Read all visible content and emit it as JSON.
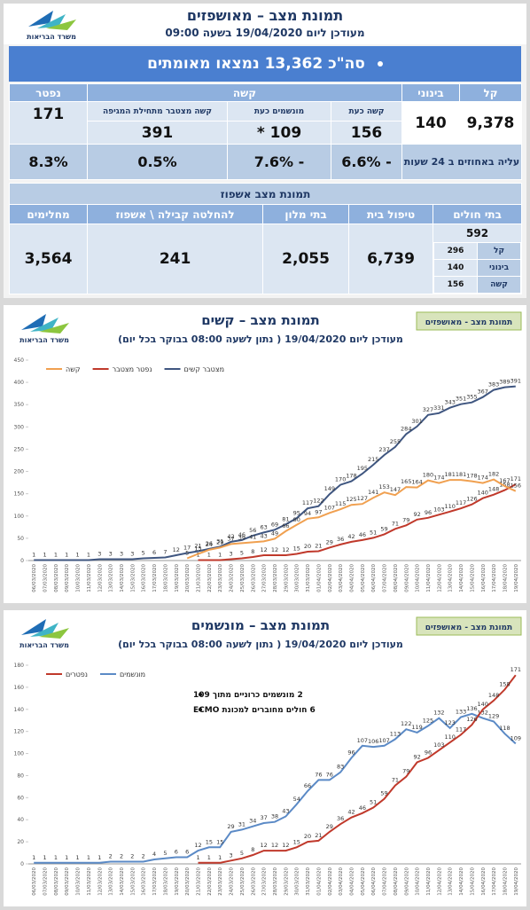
{
  "logo": "משרד הבריאות",
  "header": {
    "title": "תמונת מצב – מאושפזים",
    "subtitle": "מעודכן ליום 19/04/2020 בשעה 09:00"
  },
  "banner": "סה\"כ 13,362 נמצאו מאומתים",
  "status_table": {
    "headers": {
      "mild": "קל",
      "moderate": "בינוני",
      "severe": "קשה",
      "dead": "נפטר"
    },
    "severe_subheaders": [
      "קשה כעת",
      "מונשמים כעת",
      "קשה מצטבר מתחילת המגיפה"
    ],
    "values": {
      "mild": "9,378",
      "moderate": "140",
      "severe": [
        "156",
        "109 *",
        "391"
      ],
      "dead": "171"
    },
    "change_label": "עליה באחוזים ב 24 שעות",
    "changes": [
      "- 6.6%",
      "- 7.6%",
      "0.5%",
      "8.3%"
    ]
  },
  "hospitalization": {
    "title": "תמונת מצב אשפוז",
    "headers": [
      "בתי חולים",
      "טיפול בית",
      "בתי מלון",
      "להחלטה קבילה \\ אשפוז",
      "מחלימים"
    ],
    "values": [
      "592",
      "6,739",
      "2,055",
      "241",
      "3,564"
    ],
    "hospital_breakdown": [
      [
        "קל",
        "296"
      ],
      [
        "בינוני",
        "140"
      ],
      [
        "קשה",
        "156"
      ]
    ]
  },
  "chart_data": [
    {
      "type": "line",
      "tag": "תמונת מצב - מאושפזים",
      "title": "תמונת מצב – קשים",
      "subtitle": "מעודכן ליום 19/04/2020 ( נתון לשעה 08:00 בבוקר בכל יום)",
      "categories": [
        "06/03/2020",
        "07/03/2020",
        "08/03/2020",
        "09/03/2020",
        "10/03/2020",
        "11/03/2020",
        "12/03/2020",
        "13/03/2020",
        "14/03/2020",
        "15/03/2020",
        "16/03/2020",
        "17/03/2020",
        "18/03/2020",
        "19/03/2020",
        "20/03/2020",
        "21/03/2020",
        "22/03/2020",
        "23/03/2020",
        "24/03/2020",
        "25/03/2020",
        "26/03/2020",
        "27/03/2020",
        "28/03/2020",
        "29/03/2020",
        "30/03/2020",
        "31/03/2020",
        "01/04/2020",
        "02/04/2020",
        "03/04/2020",
        "04/04/2020",
        "05/04/2020",
        "06/04/2020",
        "07/04/2020",
        "08/04/2020",
        "09/04/2020",
        "10/04/2020",
        "11/04/2020",
        "12/04/2020",
        "13/04/2020",
        "14/04/2020",
        "15/04/2020",
        "16/04/2020",
        "17/04/2020",
        "18/04/2020",
        "19/04/2020"
      ],
      "series": [
        {
          "name": "מצטבר קשים",
          "color": "#3f5680",
          "values": [
            1,
            1,
            1,
            1,
            1,
            1,
            3,
            3,
            3,
            3,
            5,
            6,
            7,
            12,
            17,
            21,
            26,
            31,
            42,
            46,
            56,
            63,
            69,
            81,
            95,
            117,
            122,
            149,
            170,
            178,
            195,
            215,
            237,
            255,
            284,
            301,
            327,
            331,
            343,
            351,
            355,
            367,
            383,
            389,
            391
          ]
        },
        {
          "name": "נפטר מצטבר",
          "color": "#c0392b",
          "values": [
            null,
            null,
            null,
            null,
            null,
            null,
            null,
            null,
            null,
            null,
            null,
            null,
            null,
            null,
            null,
            1,
            1,
            1,
            3,
            5,
            8,
            12,
            12,
            12,
            15,
            20,
            21,
            29,
            36,
            42,
            46,
            51,
            59,
            71,
            79,
            92,
            96,
            103,
            110,
            117,
            126,
            140,
            148,
            158,
            171
          ]
        },
        {
          "name": "קשה",
          "color": "#f0a050",
          "values": [
            null,
            null,
            null,
            null,
            null,
            null,
            null,
            null,
            null,
            null,
            null,
            null,
            null,
            null,
            5,
            15,
            24,
            29,
            37,
            39,
            41,
            43,
            49,
            66,
            80,
            94,
            97,
            107,
            115,
            125,
            127,
            141,
            153,
            147,
            165,
            164,
            180,
            174,
            181,
            181,
            178,
            174,
            182,
            167,
            156
          ]
        }
      ],
      "ylim": [
        0,
        450
      ],
      "yticks": [
        0,
        50,
        100,
        150,
        200,
        250,
        300,
        350,
        400,
        450
      ],
      "grid": false,
      "legend": "top-left"
    },
    {
      "type": "line",
      "tag": "תמונת מצב - מאושפזים",
      "title": "תמונת מצב – מונשמים",
      "subtitle": "מעודכן ליום 19/04/2020 ( נתון לשעה 08:00 בבוקר בכל יום)",
      "categories": [
        "06/03/2020",
        "07/03/2020",
        "08/03/2020",
        "09/03/2020",
        "10/03/2020",
        "11/03/2020",
        "12/03/2020",
        "13/03/2020",
        "14/03/2020",
        "15/03/2020",
        "16/03/2020",
        "17/03/2020",
        "18/03/2020",
        "19/03/2020",
        "20/03/2020",
        "21/03/2020",
        "22/03/2020",
        "23/03/2020",
        "24/03/2020",
        "25/03/2020",
        "26/03/2020",
        "27/03/2020",
        "28/03/2020",
        "29/03/2020",
        "30/03/2020",
        "31/03/2020",
        "01/04/2020",
        "02/04/2020",
        "03/04/2020",
        "04/04/2020",
        "05/04/2020",
        "06/04/2020",
        "07/04/2020",
        "08/04/2020",
        "09/04/2020",
        "10/04/2020",
        "11/04/2020",
        "12/04/2020",
        "13/04/2020",
        "14/04/2020",
        "15/04/2020",
        "16/04/2020",
        "17/04/2020",
        "18/04/2020",
        "19/04/2020"
      ],
      "series": [
        {
          "name": "מונשמים",
          "color": "#5b8ac6",
          "values": [
            1,
            1,
            1,
            1,
            1,
            1,
            1,
            2,
            2,
            2,
            2,
            4,
            5,
            6,
            6,
            12,
            15,
            15,
            29,
            31,
            34,
            37,
            38,
            43,
            54,
            66,
            76,
            76,
            83,
            96,
            107,
            106,
            107,
            113,
            122,
            119,
            125,
            132,
            123,
            133,
            136,
            132,
            129,
            118,
            109
          ]
        },
        {
          "name": "נפטרים",
          "color": "#c0392b",
          "values": [
            null,
            null,
            null,
            null,
            null,
            null,
            null,
            null,
            null,
            null,
            null,
            null,
            null,
            null,
            null,
            1,
            1,
            1,
            3,
            5,
            8,
            12,
            12,
            12,
            15,
            20,
            21,
            29,
            36,
            42,
            46,
            51,
            59,
            71,
            79,
            92,
            96,
            103,
            110,
            117,
            126,
            140,
            148,
            158,
            171
          ]
        }
      ],
      "annotations": [
        "2 מונשמים כרוניים מתוך 109",
        "6 חולים מחוברים למכונת ECMO"
      ],
      "ylim": [
        0,
        180
      ],
      "yticks": [
        0,
        20,
        40,
        60,
        80,
        100,
        120,
        140,
        160,
        180
      ],
      "grid": false,
      "legend": "top-left"
    }
  ]
}
